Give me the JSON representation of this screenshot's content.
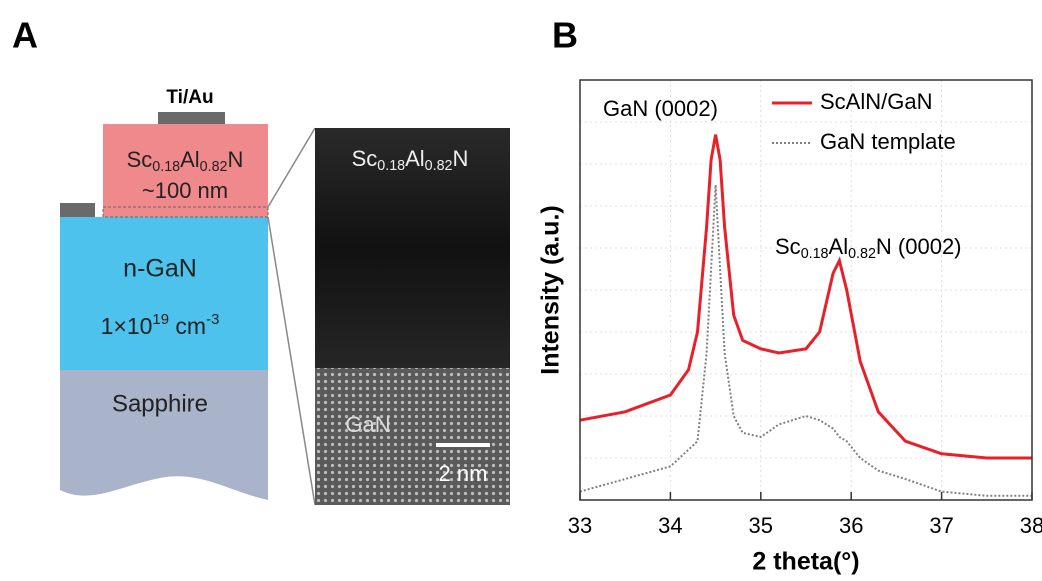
{
  "panel_labels": [
    "A",
    "B"
  ],
  "diagram": {
    "contact_label": "Ti/Au",
    "top_layer": {
      "formula": [
        "Sc",
        "0.18",
        "Al",
        "0.82",
        "N"
      ],
      "thickness": "~100 nm"
    },
    "middle_layer": {
      "name": "n-GaN",
      "doping": [
        "1×10",
        "19",
        " cm",
        "-3"
      ]
    },
    "substrate": "Sapphire",
    "tem": {
      "top_formula": [
        "Sc",
        "0.18",
        "Al",
        "0.82",
        "N"
      ],
      "bottom_label": "GaN",
      "scale_bar": "2 nm"
    }
  },
  "chart_data": {
    "type": "line",
    "x_label": "2 theta(°)",
    "y_label": "Intensity (a.u.)",
    "annotations": {
      "gan_peak": "GaN (0002)",
      "scaln_peak": {
        "formula": [
          "Sc",
          "0.18",
          "Al",
          "0.82",
          "N"
        ],
        "suffix": " (0002)"
      }
    },
    "x": [
      33,
      33.5,
      34,
      34.2,
      34.3,
      34.4,
      34.45,
      34.5,
      34.55,
      34.6,
      34.7,
      34.8,
      35,
      35.2,
      35.5,
      35.65,
      35.8,
      35.87,
      35.95,
      36.1,
      36.3,
      36.6,
      37,
      37.5,
      38
    ],
    "series": [
      {
        "name": "ScAlN/GaN",
        "color": "#e8202a",
        "values": [
          19,
          21,
          25,
          31,
          40,
          65,
          81,
          87,
          81,
          65,
          44,
          38,
          36,
          35,
          36,
          40,
          54,
          57,
          50,
          33,
          21,
          14,
          11,
          10,
          10
        ]
      },
      {
        "name": "GaN template",
        "color": "#808080",
        "values": [
          2,
          5,
          8,
          12,
          14,
          35,
          55,
          75,
          55,
          35,
          20,
          16,
          15,
          18,
          20,
          19,
          17,
          15,
          14,
          10,
          7,
          5,
          2,
          1,
          1
        ]
      }
    ],
    "xlim": [
      33,
      38
    ],
    "xticks": [
      33,
      34,
      35,
      36,
      37,
      38
    ],
    "ylim": [
      0,
      100
    ],
    "grid": true,
    "legend": "top-right"
  }
}
